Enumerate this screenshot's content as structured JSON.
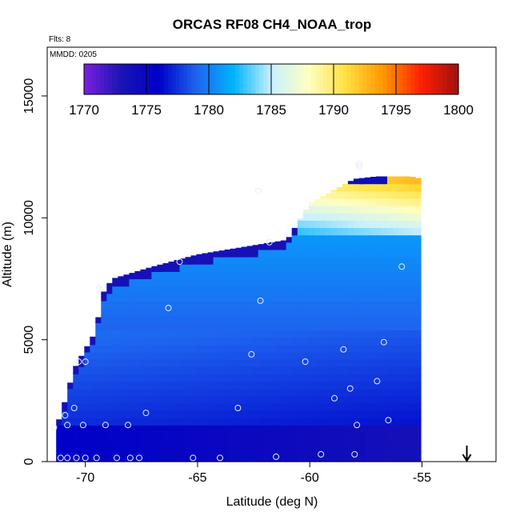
{
  "chart_data": {
    "type": "heatmap",
    "title": "ORCAS RF08 CH4_NOAA_trop",
    "subtitle": "Flts: 8",
    "annotation": "MMDD: 0205",
    "xlabel": "Latitude (deg N)",
    "ylabel": "Altitude (m)",
    "xlim": [
      -71.7,
      -51.7
    ],
    "ylim": [
      0,
      17000
    ],
    "x_ticks": [
      -70,
      -65,
      -60,
      -55
    ],
    "x_tick_labels": [
      "-70",
      "-65",
      "-60",
      "-55"
    ],
    "y_ticks": [
      0,
      5000,
      10000,
      15000
    ],
    "y_tick_labels": [
      "0",
      "5000",
      "10000",
      "15000"
    ],
    "colorbar": {
      "min": 1770,
      "max": 1800,
      "ticks": [
        1770,
        1775,
        1780,
        1785,
        1790,
        1795,
        1800
      ],
      "tick_labels": [
        "1770",
        "1775",
        "1780",
        "1785",
        "1790",
        "1795",
        "1800"
      ],
      "colors": [
        "#7b1fe0",
        "#1a14b4",
        "#0000c8",
        "#1e64f0",
        "#00b4ff",
        "#c8f0ff",
        "#ffffc0",
        "#ffe040",
        "#ff9600",
        "#ff2000",
        "#a01010"
      ]
    },
    "field": {
      "lat_range": [
        -71.3,
        -55.0
      ],
      "alt_range": [
        0,
        12200
      ],
      "region_edges": [
        {
          "lat": -71.3,
          "top": 1400
        },
        {
          "lat": -71.0,
          "top": 2200
        },
        {
          "lat": -70.5,
          "top": 3800
        },
        {
          "lat": -70.2,
          "top": 4300
        },
        {
          "lat": -69.5,
          "top": 5400
        },
        {
          "lat": -69.3,
          "top": 6800
        },
        {
          "lat": -68.8,
          "top": 7500
        },
        {
          "lat": -67.0,
          "top": 8000
        },
        {
          "lat": -65.0,
          "top": 8500
        },
        {
          "lat": -63.0,
          "top": 8800
        },
        {
          "lat": -61.0,
          "top": 9100
        },
        {
          "lat": -60.0,
          "top": 10600
        },
        {
          "lat": -58.0,
          "top": 11600
        },
        {
          "lat": -57.0,
          "top": 11700
        },
        {
          "lat": -55.5,
          "top": 11700
        },
        {
          "lat": -55.0,
          "top": 11600
        }
      ]
    },
    "observations": [
      {
        "lat": -71.1,
        "alt": 150
      },
      {
        "lat": -70.8,
        "alt": 150
      },
      {
        "lat": -70.4,
        "alt": 150
      },
      {
        "lat": -70.0,
        "alt": 150
      },
      {
        "lat": -69.5,
        "alt": 150
      },
      {
        "lat": -68.6,
        "alt": 150
      },
      {
        "lat": -68.0,
        "alt": 150
      },
      {
        "lat": -67.6,
        "alt": 150
      },
      {
        "lat": -65.2,
        "alt": 150
      },
      {
        "lat": -64.0,
        "alt": 150
      },
      {
        "lat": -61.5,
        "alt": 200
      },
      {
        "lat": -59.5,
        "alt": 300
      },
      {
        "lat": -58.0,
        "alt": 300
      },
      {
        "lat": -71.4,
        "alt": 1400
      },
      {
        "lat": -70.8,
        "alt": 1500
      },
      {
        "lat": -70.1,
        "alt": 1500
      },
      {
        "lat": -69.1,
        "alt": 1500
      },
      {
        "lat": -68.1,
        "alt": 1500
      },
      {
        "lat": -70.9,
        "alt": 1900
      },
      {
        "lat": -70.5,
        "alt": 2200
      },
      {
        "lat": -67.3,
        "alt": 2000
      },
      {
        "lat": -63.2,
        "alt": 2200
      },
      {
        "lat": -58.9,
        "alt": 2600
      },
      {
        "lat": -58.2,
        "alt": 3000
      },
      {
        "lat": -57.0,
        "alt": 3300
      },
      {
        "lat": -56.5,
        "alt": 1700
      },
      {
        "lat": -57.9,
        "alt": 1500
      },
      {
        "lat": -70.3,
        "alt": 4100
      },
      {
        "lat": -70.0,
        "alt": 4100
      },
      {
        "lat": -60.2,
        "alt": 4100
      },
      {
        "lat": -62.6,
        "alt": 4400
      },
      {
        "lat": -58.5,
        "alt": 4600
      },
      {
        "lat": -56.7,
        "alt": 4900
      },
      {
        "lat": -66.3,
        "alt": 6300
      },
      {
        "lat": -62.2,
        "alt": 6600
      },
      {
        "lat": -69.4,
        "alt": 7100
      },
      {
        "lat": -65.8,
        "alt": 8200
      },
      {
        "lat": -55.9,
        "alt": 8000
      },
      {
        "lat": -61.8,
        "alt": 9000
      },
      {
        "lat": -62.3,
        "alt": 11100
      },
      {
        "lat": -57.8,
        "alt": 12200
      },
      {
        "lat": -57.8,
        "alt": 12100
      }
    ],
    "marker": {
      "lat": -53.0,
      "direction": "down"
    }
  }
}
